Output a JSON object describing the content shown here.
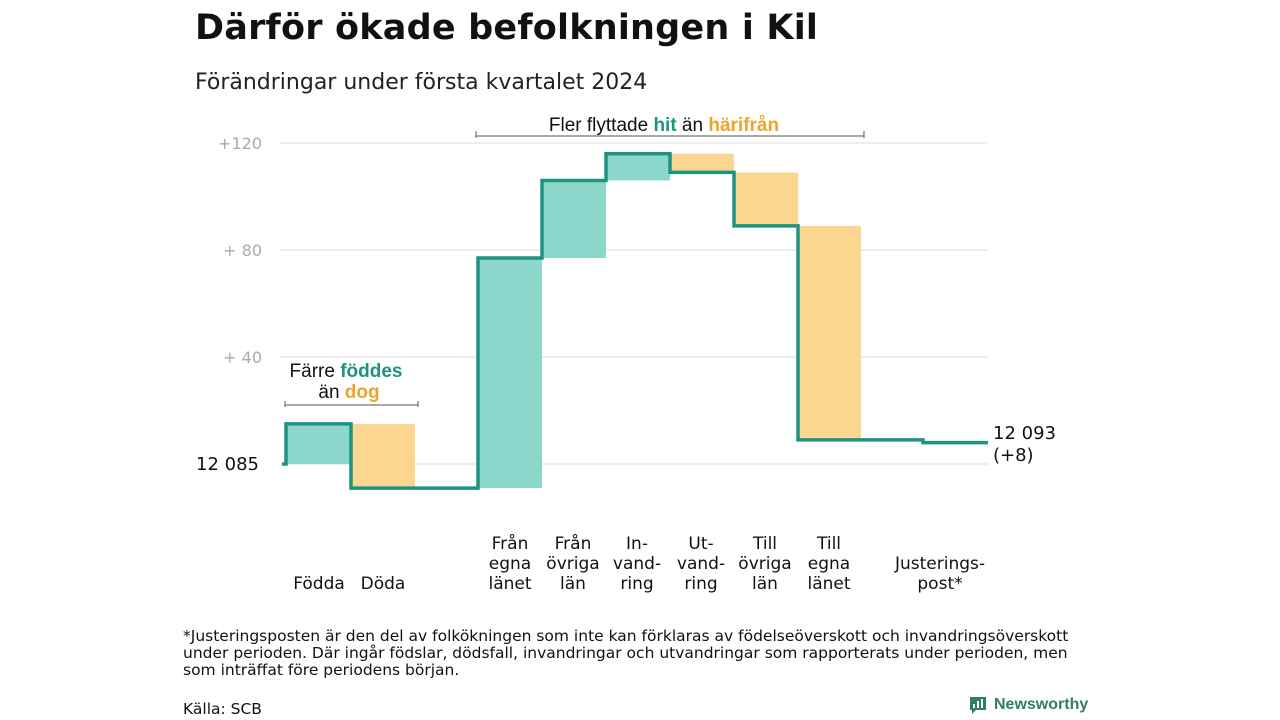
{
  "title": "Därför ökade befolkningen i Kil",
  "subtitle": "Förändringar under första kvartalet 2024",
  "chart_data": {
    "type": "waterfall",
    "base_population": 12085,
    "end_population": 12093,
    "ylim": [
      -10,
      120
    ],
    "yticks": [
      {
        "value": 40,
        "label": "+  40"
      },
      {
        "value": 80,
        "label": "+  80"
      },
      {
        "value": 120,
        "label": "+120"
      }
    ],
    "base_label": "12  085",
    "end_label_line1": "12 093",
    "end_label_line2": "(+8)",
    "steps": [
      {
        "category": [
          "Födda"
        ],
        "change": 15,
        "kind": "in"
      },
      {
        "category": [
          "Döda"
        ],
        "change": -24,
        "kind": "out"
      },
      {
        "category": [
          "Från",
          "egna",
          "länet"
        ],
        "change": 86,
        "kind": "in"
      },
      {
        "category": [
          "Från",
          "övriga",
          "län"
        ],
        "change": 29,
        "kind": "in"
      },
      {
        "category": [
          "In-",
          "vand-",
          "ring"
        ],
        "change": 10,
        "kind": "in"
      },
      {
        "category": [
          "Ut-",
          "vand-",
          "ring"
        ],
        "change": -7,
        "kind": "out"
      },
      {
        "category": [
          "Till",
          "övriga",
          "län"
        ],
        "change": -20,
        "kind": "out"
      },
      {
        "category": [
          "Till",
          "egna",
          "länet"
        ],
        "change": -80,
        "kind": "out"
      },
      {
        "category": [
          "Justerings-",
          "post*"
        ],
        "change": -1,
        "kind": "adj"
      }
    ],
    "colors": {
      "line": "#1e9480",
      "in_fill": "#8dd6cc",
      "out_fill": "#fad690",
      "grid": "#dddddd",
      "tick": "#aaaaaa",
      "accent_teal": "#1e9480",
      "accent_orange": "#f0a32c"
    }
  },
  "annotations": {
    "births": {
      "pre1": "Färre ",
      "hl1": "föddes",
      "pre2": "än ",
      "hl2": "dog"
    },
    "migration": {
      "pre1": "Fler flyttade ",
      "hl1": "hit",
      "pre2": " än ",
      "hl2": "härifrån"
    }
  },
  "footnote": "*Justeringsposten är den del av folkökningen som inte kan förklaras av födelseöverskott och invandringsöverskott under perioden. Där ingår födslar, dödsfall, invandringar och utvandringar som rapporterats under perioden, men som inträffat före periodens början.",
  "source": "Källa: SCB",
  "brand": {
    "name": "Newsworthy",
    "icon": "newsworthy-logo-icon"
  }
}
